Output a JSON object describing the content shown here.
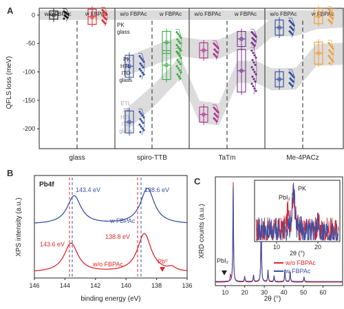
{
  "panels": {
    "A": {
      "letter": "A",
      "ylabel": "QFLS loss (meV)",
      "yticks": [
        0,
        -50,
        -100,
        -150,
        -200
      ],
      "ylim": [
        -235,
        12
      ],
      "groups": [
        {
          "label": "glass",
          "headers": [
            "w/o FBPAc",
            "w FBPAc"
          ]
        },
        {
          "label": "spiro-TTB",
          "headers": [
            "w/o FBPAc",
            "w FBPAc"
          ]
        },
        {
          "label": "TaTm",
          "headers": [
            "w/o FBPAc",
            "w FBPAc"
          ]
        },
        {
          "label": "Me-4PACz",
          "headers": [
            "w/o FBPAc",
            "w FBPAc"
          ]
        }
      ],
      "stack_labels": {
        "glass": [
          "PK",
          "glass"
        ],
        "htl": [
          "PK",
          "HTL",
          "ITO",
          "glass"
        ],
        "etl": [
          "ETL",
          "PK",
          "HTL",
          "ITO",
          "glass"
        ]
      },
      "colors": {
        "glass_wo": "#1a1a1a",
        "glass_w": "#e8262b",
        "spiro_wo": "#3a4fa3",
        "spiro_w": "#3aaa44",
        "tatm_wo": "#b0308e",
        "tatm_w": "#7a2f8e",
        "me_wo": "#2d4a9a",
        "me_w": "#f39b2f",
        "band": "#dcdcdc"
      }
    },
    "B": {
      "letter": "B",
      "tag": "Pb4f",
      "xlabel": "binding energy (eV)",
      "ylabel": "XPS intensity (a.u.)",
      "xticks": [
        146,
        144,
        142,
        140,
        138,
        136
      ],
      "labels": {
        "blue_left": "143.4 eV",
        "blue_right": "138.6 eV",
        "red_left": "143.6 eV",
        "red_right": "138.8 eV",
        "blue_series": "w FBPAc",
        "red_series": "w/o FBPAc",
        "pb0": "Pb⁰"
      },
      "colors": {
        "with": "#3a4fa3",
        "without": "#e0262b"
      }
    },
    "C": {
      "letter": "C",
      "xlabel": "2θ (°)",
      "ylabel": "XRD counts (a.u.)",
      "xticks": [
        10,
        20,
        30,
        40,
        50,
        60
      ],
      "inset_xticks": [
        10,
        20
      ],
      "inset_xlabel": "2θ (°)",
      "labels": {
        "pbi2": "PbI₂",
        "inset_pbi2": "PbI₂",
        "inset_pk": "PK"
      },
      "legend": [
        {
          "name": "w/o FBPAc",
          "color": "#e0262b"
        },
        {
          "name": "w FBPAc",
          "color": "#3a4fa3"
        }
      ]
    }
  },
  "chart_data": [
    {
      "type": "box",
      "panel": "A",
      "ylabel": "QFLS loss (meV)",
      "ylim": [
        -235,
        12
      ],
      "categories": [
        "glass",
        "spiro-TTB",
        "TaTm",
        "Me-4PACz"
      ],
      "series": [
        {
          "name": "w/o FBPAc",
          "stacks": {
            "glass": {
              "PK/glass": 0
            },
            "spiro-TTB": {
              "PK/HTL/ITO/glass": -90,
              "ETL/PK/HTL/ITO/glass": -188
            },
            "TaTm": {
              "PK/HTL/ITO/glass": -62,
              "ETL/PK/HTL/ITO/glass": -175
            },
            "Me-4PACz": {
              "PK/HTL/ITO/glass": -22,
              "ETL/PK/HTL/ITO/glass": -113
            }
          }
        },
        {
          "name": "w FBPAc",
          "stacks": {
            "glass": {
              "PK/glass": -3
            },
            "spiro-TTB": {
              "PK/HTL/ITO/glass": -48,
              "ETL/PK/HTL/ITO/glass": -88
            },
            "TaTm": {
              "PK/HTL/ITO/glass": -42,
              "ETL/PK/HTL/ITO/glass": -98
            },
            "Me-4PACz": {
              "PK/HTL/ITO/glass": -2,
              "ETL/PK/HTL/ITO/glass": -67
            }
          }
        }
      ]
    },
    {
      "type": "line",
      "panel": "B",
      "xlabel": "binding energy (eV)",
      "ylabel": "XPS intensity (a.u.)",
      "xlim": [
        146,
        136
      ],
      "series": [
        {
          "name": "w FBPAc",
          "peaks_eV": [
            143.4,
            138.6
          ]
        },
        {
          "name": "w/o FBPAc",
          "peaks_eV": [
            143.6,
            138.8
          ],
          "shoulder": {
            "label": "Pb⁰",
            "eV": 137.0
          }
        }
      ]
    },
    {
      "type": "line",
      "panel": "C",
      "xlabel": "2θ (°)",
      "ylabel": "XRD counts (a.u.)",
      "xlim": [
        5,
        70
      ],
      "series": [
        {
          "name": "w/o FBPAc",
          "peaks_2theta": [
            12.7,
            14.1,
            20.0,
            24.5,
            28.4,
            31.9,
            35.0,
            40.5,
            43.2,
            50.3
          ]
        },
        {
          "name": "w FBPAc",
          "peaks_2theta": [
            14.1,
            20.0,
            24.5,
            28.4,
            31.9,
            35.0,
            40.5,
            43.2,
            50.3
          ]
        }
      ],
      "inset": {
        "xlim": [
          5,
          25
        ],
        "annotations": [
          {
            "label": "PbI₂",
            "x": 12.7
          },
          {
            "label": "PK",
            "x": 14.1
          }
        ]
      }
    }
  ]
}
